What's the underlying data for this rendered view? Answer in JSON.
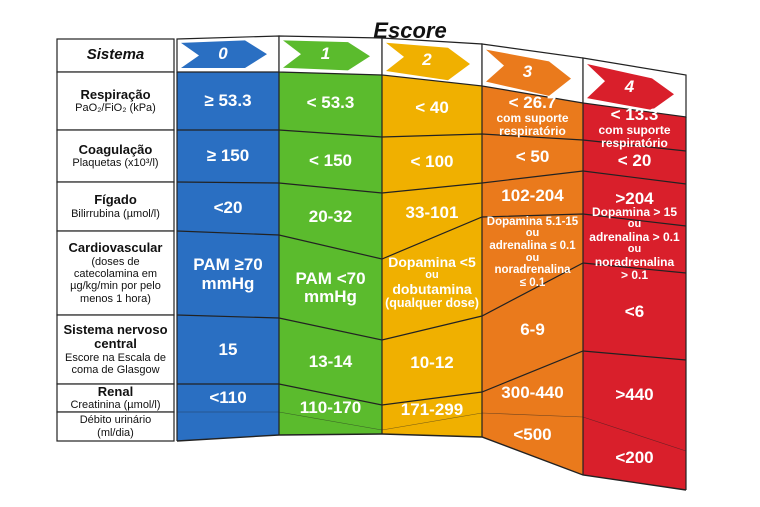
{
  "title": "Escore",
  "header_label": "Sistema",
  "colors": {
    "blue": "#2a6fc2",
    "green": "#5bbb2d",
    "yellow": "#f0b000",
    "orange": "#ea7a1c",
    "red": "#d91f2b",
    "border": "#222222"
  },
  "scores": [
    "0",
    "1",
    "2",
    "3",
    "4"
  ],
  "rows": [
    {
      "label": {
        "title": "Respiração",
        "sub": "PaO₂/FiO₂ (kPa)"
      },
      "cells": [
        [
          "≥ 53.3"
        ],
        [
          "< 53.3"
        ],
        [
          "< 40"
        ],
        [
          "< 26.7",
          "com suporte respiratório"
        ],
        [
          "< 13.3",
          "com suporte respiratório"
        ]
      ]
    },
    {
      "label": {
        "title": "Coagulação",
        "sub": "Plaquetas (x10³/l)"
      },
      "cells": [
        [
          "≥ 150"
        ],
        [
          "< 150"
        ],
        [
          "< 100"
        ],
        [
          "< 50"
        ],
        [
          "< 20"
        ]
      ]
    },
    {
      "label": {
        "title": "Fígado",
        "sub": "Bilirrubina (µmol/l)"
      },
      "cells": [
        [
          "<20"
        ],
        [
          "20-32"
        ],
        [
          "33-101"
        ],
        [
          "102-204"
        ],
        [
          ">204"
        ]
      ]
    },
    {
      "label": {
        "title": "Cardiovascular",
        "sub": "(doses de catecolamina em µg/kg/min por pelo menos 1 hora)"
      },
      "cells": [
        [
          "PAM ≥70 mmHg"
        ],
        [
          "PAM <70 mmHg"
        ],
        [
          "Dopamina <5",
          "ou",
          "dobutamina",
          "(qualquer dose)"
        ],
        [
          "Dopamina 5.1-15",
          "ou",
          "adrenalina ≤ 0.1",
          "ou",
          "noradrenalina",
          "≤ 0.1"
        ],
        [
          "Dopamina > 15",
          "ou",
          "adrenalina > 0.1",
          "ou",
          "noradrenalina",
          "> 0.1"
        ]
      ]
    },
    {
      "label": {
        "title": "Sistema nervoso central",
        "sub": "Escore na Escala de coma de Glasgow"
      },
      "cells": [
        [
          "15"
        ],
        [
          "13-14"
        ],
        [
          "10-12"
        ],
        [
          "6-9"
        ],
        [
          "<6"
        ]
      ]
    },
    {
      "label": {
        "title": "Renal",
        "sub": "Creatinina (µmol/l)"
      },
      "cells": [
        [
          "<110"
        ],
        [
          "110-170"
        ],
        [
          "171-299"
        ],
        [
          "300-440"
        ],
        [
          ">440"
        ]
      ]
    },
    {
      "label": {
        "title": "",
        "sub": "Débito urinário (ml/dia)"
      },
      "cells": [
        [
          ""
        ],
        [
          ""
        ],
        [
          ""
        ],
        [
          "<500"
        ],
        [
          "<200"
        ]
      ]
    }
  ]
}
